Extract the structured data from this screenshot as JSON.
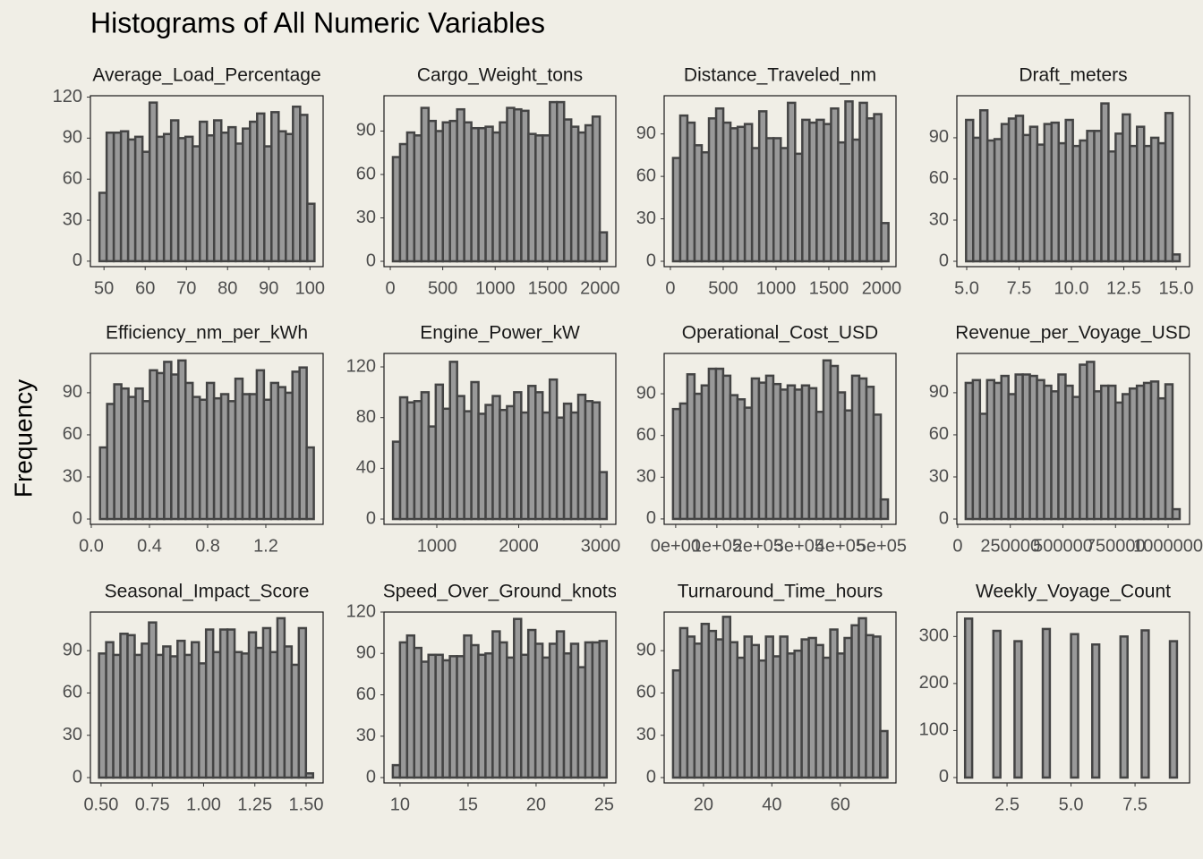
{
  "title": "Histograms of All Numeric Variables",
  "y_label": "Frequency",
  "chart_data": [
    {
      "type": "histogram",
      "title": "Average_Load_Percentage",
      "color": "#999999",
      "bins": [
        48.9,
        50.64,
        52.38,
        54.12,
        55.86,
        57.6,
        59.34,
        61.08,
        62.82,
        64.56,
        66.3,
        68.04,
        69.78,
        71.52,
        73.26,
        75.0,
        76.74,
        78.48,
        80.22,
        81.96,
        83.7,
        85.44,
        87.18,
        88.92,
        90.66,
        92.4,
        94.14,
        95.88,
        97.62,
        99.36,
        101.1
      ],
      "values": [
        50,
        94,
        94,
        95,
        89,
        91,
        80,
        116,
        91,
        93,
        103,
        90,
        91,
        84,
        102,
        92,
        103,
        94,
        98,
        86,
        97,
        102,
        108,
        84,
        109,
        95,
        93,
        113,
        107,
        42
      ],
      "xlim": [
        46.7,
        103.2
      ],
      "ylim": [
        -4,
        121
      ],
      "xticks": [
        50,
        60,
        70,
        80,
        90,
        100
      ],
      "yticks": [
        0,
        30,
        60,
        90,
        120
      ]
    },
    {
      "type": "histogram",
      "title": "Cargo_Weight_tons",
      "color": "#999999",
      "bins": [
        25,
        93,
        161,
        229,
        297,
        365,
        433,
        501,
        569,
        637,
        705,
        773,
        841,
        909,
        977,
        1045,
        1113,
        1181,
        1249,
        1317,
        1385,
        1453,
        1521,
        1589,
        1657,
        1725,
        1793,
        1861,
        1929,
        1997,
        2065
      ],
      "values": [
        72,
        81,
        89,
        87,
        106,
        97,
        90,
        96,
        97,
        105,
        96,
        92,
        92,
        93,
        89,
        96,
        106,
        105,
        104,
        88,
        87,
        87,
        110,
        110,
        98,
        93,
        89,
        94,
        100,
        20
      ],
      "xlim": [
        -60,
        2150
      ],
      "ylim": [
        -3.7,
        114.4
      ],
      "xticks": [
        0,
        500,
        1000,
        1500,
        2000
      ],
      "yticks": [
        0,
        30,
        60,
        90
      ]
    },
    {
      "type": "histogram",
      "title": "Distance_Traveled_nm",
      "color": "#999999",
      "bins": [
        25,
        93,
        161,
        229,
        297,
        365,
        433,
        501,
        569,
        637,
        705,
        773,
        841,
        909,
        977,
        1045,
        1113,
        1181,
        1249,
        1317,
        1385,
        1453,
        1521,
        1589,
        1657,
        1725,
        1793,
        1861,
        1929,
        1997,
        2065
      ],
      "values": [
        73,
        103,
        98,
        82,
        77,
        101,
        108,
        98,
        94,
        95,
        97,
        80,
        106,
        87,
        87,
        80,
        112,
        76,
        100,
        98,
        100,
        97,
        108,
        84,
        113,
        86,
        112,
        101,
        104,
        27
      ],
      "xlim": [
        -59,
        2136
      ],
      "ylim": [
        -3.8,
        117
      ],
      "xticks": [
        0,
        500,
        1000,
        1500,
        2000
      ],
      "yticks": [
        0,
        30,
        60,
        90
      ]
    },
    {
      "type": "histogram",
      "title": "Draft_meters",
      "color": "#999999",
      "bins": [
        4.97,
        5.31,
        5.65,
        5.99,
        6.33,
        6.67,
        7.01,
        7.35,
        7.69,
        8.03,
        8.37,
        8.71,
        9.05,
        9.39,
        9.73,
        10.07,
        10.41,
        10.75,
        11.09,
        11.43,
        11.77,
        12.11,
        12.45,
        12.79,
        13.13,
        13.47,
        13.81,
        14.15,
        14.49,
        14.83,
        15.17
      ],
      "values": [
        103,
        90,
        110,
        88,
        89,
        100,
        104,
        106,
        92,
        98,
        85,
        100,
        101,
        86,
        103,
        84,
        88,
        95,
        95,
        115,
        80,
        93,
        107,
        84,
        98,
        84,
        90,
        86,
        108,
        5
      ],
      "xlim": [
        4.53,
        15.64
      ],
      "ylim": [
        -3.9,
        120.6
      ],
      "xticks": [
        {
          "value": 5.0,
          "label": "5.0"
        },
        7.5,
        {
          "value": 10.0,
          "label": "10.0"
        },
        12.5,
        {
          "value": 15.0,
          "label": "15.0"
        }
      ],
      "yticks": [
        0,
        30,
        60,
        90
      ]
    },
    {
      "type": "histogram",
      "title": "Efficiency_nm_per_kWh",
      "color": "#999999",
      "bins": [
        0.06,
        0.109,
        0.158,
        0.207,
        0.256,
        0.305,
        0.354,
        0.403,
        0.452,
        0.501,
        0.55,
        0.599,
        0.648,
        0.697,
        0.746,
        0.795,
        0.844,
        0.893,
        0.942,
        0.991,
        1.04,
        1.089,
        1.138,
        1.187,
        1.236,
        1.285,
        1.334,
        1.383,
        1.432,
        1.481,
        1.53
      ],
      "values": [
        51,
        82,
        96,
        93,
        87,
        93,
        84,
        106,
        104,
        112,
        103,
        113,
        97,
        87,
        85,
        97,
        86,
        89,
        84,
        100,
        89,
        89,
        106,
        85,
        97,
        94,
        90,
        105,
        108,
        51
      ],
      "xlim": [
        -0.006,
        1.594
      ],
      "ylim": [
        -3.8,
        118
      ],
      "xticks": [
        {
          "value": 0.0,
          "label": "0.0"
        },
        0.4,
        0.8,
        1.2
      ],
      "yticks": [
        0,
        30,
        60,
        90
      ]
    },
    {
      "type": "histogram",
      "title": "Engine_Power_kW",
      "color": "#999999",
      "bins": [
        465,
        552,
        639,
        726,
        813,
        900,
        987,
        1074,
        1161,
        1248,
        1335,
        1422,
        1509,
        1596,
        1683,
        1770,
        1857,
        1944,
        2031,
        2118,
        2205,
        2292,
        2379,
        2466,
        2553,
        2640,
        2727,
        2814,
        2901,
        2988,
        3075
      ],
      "values": [
        61,
        96,
        92,
        93,
        100,
        73,
        106,
        87,
        124,
        97,
        85,
        108,
        83,
        90,
        97,
        86,
        89,
        100,
        84,
        105,
        100,
        84,
        110,
        80,
        91,
        84,
        98,
        93,
        92,
        37
      ],
      "xlim": [
        355,
        3186
      ],
      "ylim": [
        -4.2,
        130.6
      ],
      "xticks": [
        1000,
        2000,
        3000
      ],
      "yticks": [
        0,
        40,
        80,
        120
      ]
    },
    {
      "type": "histogram",
      "title": "Operational_Cost_USD",
      "color": "#999999",
      "bins": [
        -6500,
        10900,
        28300,
        45700,
        63100,
        80500,
        97900,
        115300,
        132700,
        150100,
        167500,
        184900,
        202300,
        219700,
        237100,
        254500,
        271900,
        289300,
        306700,
        324100,
        341500,
        358900,
        376300,
        393700,
        411100,
        428500,
        445900,
        463300,
        480700,
        498100,
        515500
      ],
      "values": [
        79,
        83,
        104,
        90,
        96,
        108,
        108,
        103,
        89,
        86,
        80,
        101,
        98,
        103,
        97,
        93,
        96,
        93,
        96,
        94,
        77,
        114,
        110,
        91,
        78,
        103,
        101,
        95,
        75,
        14
      ],
      "xlim": [
        -28000,
        535000
      ],
      "ylim": [
        -3.9,
        119
      ],
      "xticks": [
        {
          "value": 0,
          "label": "0e+00"
        },
        {
          "value": 100000,
          "label": "1e+05"
        },
        {
          "value": 200000,
          "label": "2e+05"
        },
        {
          "value": 300000,
          "label": "3e+05"
        },
        {
          "value": 400000,
          "label": "4e+05"
        },
        {
          "value": 500000,
          "label": "5e+05"
        }
      ],
      "yticks": [
        0,
        30,
        60,
        90
      ]
    },
    {
      "type": "histogram",
      "title": "Revenue_per_Voyage_USD",
      "color": "#999999",
      "bins": [
        38000,
        71900,
        105800,
        139700,
        173600,
        207500,
        241400,
        275300,
        309200,
        343100,
        377000,
        410900,
        444800,
        478700,
        512600,
        546500,
        580400,
        614300,
        648200,
        682100,
        716000,
        749900,
        783800,
        817700,
        851600,
        885500,
        919400,
        953300,
        987200,
        1021100,
        1055000
      ],
      "values": [
        97,
        99,
        75,
        99,
        97,
        102,
        89,
        103,
        103,
        102,
        99,
        95,
        91,
        103,
        95,
        87,
        110,
        112,
        91,
        95,
        95,
        83,
        89,
        93,
        95,
        97,
        98,
        86,
        96,
        7
      ],
      "xlim": [
        -4000,
        1102000
      ],
      "ylim": [
        -3.8,
        118
      ],
      "xticks": [
        0,
        250000,
        500000,
        750000,
        1000000
      ],
      "yticks": [
        0,
        30,
        60,
        90
      ]
    },
    {
      "type": "histogram",
      "title": "Seasonal_Impact_Score",
      "color": "#999999",
      "bins": [
        0.49,
        0.5248,
        0.5596,
        0.5944,
        0.6292,
        0.664,
        0.6988,
        0.7336,
        0.7684,
        0.8032,
        0.838,
        0.8728,
        0.9076,
        0.9424,
        0.9772,
        1.012,
        1.0468,
        1.0816,
        1.1164,
        1.1512,
        1.186,
        1.2208,
        1.2556,
        1.2904,
        1.3252,
        1.36,
        1.3948,
        1.4296,
        1.4644,
        1.4992,
        1.534
      ],
      "values": [
        88,
        96,
        87,
        102,
        101,
        87,
        95,
        110,
        87,
        93,
        86,
        97,
        87,
        96,
        81,
        105,
        89,
        105,
        105,
        89,
        88,
        103,
        92,
        106,
        89,
        113,
        93,
        80,
        106,
        3
      ],
      "xlim": [
        0.448,
        1.583
      ],
      "ylim": [
        -3.8,
        117.4
      ],
      "xticks": [
        {
          "value": 0.5,
          "label": "0.50"
        },
        {
          "value": 0.75,
          "label": "0.75"
        },
        {
          "value": 1.0,
          "label": "1.00"
        },
        {
          "value": 1.25,
          "label": "1.25"
        },
        {
          "value": 1.5,
          "label": "1.50"
        }
      ],
      "yticks": [
        0,
        30,
        60,
        90
      ]
    },
    {
      "type": "histogram",
      "title": "Speed_Over_Ground_knots",
      "color": "#999999",
      "bins": [
        9.47,
        9.994,
        10.518,
        11.042,
        11.566,
        12.09,
        12.614,
        13.138,
        13.662,
        14.186,
        14.71,
        15.234,
        15.758,
        16.282,
        16.806,
        17.33,
        17.854,
        18.378,
        18.902,
        19.426,
        19.95,
        20.474,
        20.998,
        21.522,
        22.046,
        22.57,
        23.094,
        23.618,
        24.142,
        24.666,
        25.19
      ],
      "values": [
        9,
        98,
        103,
        94,
        84,
        89,
        89,
        85,
        88,
        88,
        103,
        96,
        89,
        90,
        106,
        98,
        87,
        115,
        89,
        107,
        97,
        87,
        97,
        106,
        90,
        97,
        80,
        98,
        98,
        99
      ],
      "xlim": [
        8.82,
        25.86
      ],
      "ylim": [
        -3.9,
        120
      ],
      "xticks": [
        10,
        15,
        20,
        25
      ],
      "yticks": [
        0,
        30,
        60,
        90,
        120
      ]
    },
    {
      "type": "histogram",
      "title": "Turnaround_Time_hours",
      "color": "#999999",
      "bins": [
        11.1,
        13.19,
        15.28,
        17.37,
        19.46,
        21.55,
        23.64,
        25.73,
        27.82,
        29.91,
        32.0,
        34.09,
        36.18,
        38.27,
        40.36,
        42.45,
        44.54,
        46.63,
        48.72,
        50.81,
        52.9,
        54.99,
        57.08,
        59.17,
        61.26,
        63.35,
        65.44,
        67.53,
        69.62,
        71.71,
        73.8
      ],
      "values": [
        76,
        106,
        100,
        95,
        109,
        104,
        98,
        114,
        96,
        85,
        100,
        94,
        83,
        100,
        86,
        100,
        88,
        90,
        98,
        99,
        94,
        85,
        105,
        88,
        99,
        108,
        113,
        101,
        100,
        33
      ],
      "xlim": [
        8.5,
        76.3
      ],
      "ylim": [
        -3.8,
        117.4
      ],
      "xticks": [
        20,
        40,
        60
      ],
      "yticks": [
        0,
        30,
        60,
        90
      ]
    },
    {
      "type": "histogram",
      "title": "Weekly_Voyage_Count",
      "color": "#999999",
      "bins": [
        0.862,
        1.138,
        1.414,
        1.69,
        1.966,
        2.241,
        2.517,
        2.793,
        3.069,
        3.345,
        3.621,
        3.897,
        4.172,
        4.448,
        4.724,
        5.0,
        5.276,
        5.552,
        5.828,
        6.103,
        6.379,
        6.655,
        6.931,
        7.207,
        7.483,
        7.759,
        8.034,
        8.31,
        8.586,
        8.862,
        9.138
      ],
      "values": [
        338,
        0,
        0,
        0,
        312,
        0,
        0,
        290,
        0,
        0,
        0,
        316,
        0,
        0,
        0,
        305,
        0,
        0,
        283,
        0,
        0,
        0,
        300,
        0,
        0,
        313,
        0,
        0,
        0,
        290
      ],
      "xlim": [
        0.54,
        9.63
      ],
      "ylim": [
        -11.5,
        352
      ],
      "xticks": [
        2.5,
        {
          "value": 5.0,
          "label": "5.0"
        },
        7.5
      ],
      "yticks": [
        0,
        100,
        200,
        300
      ]
    }
  ]
}
